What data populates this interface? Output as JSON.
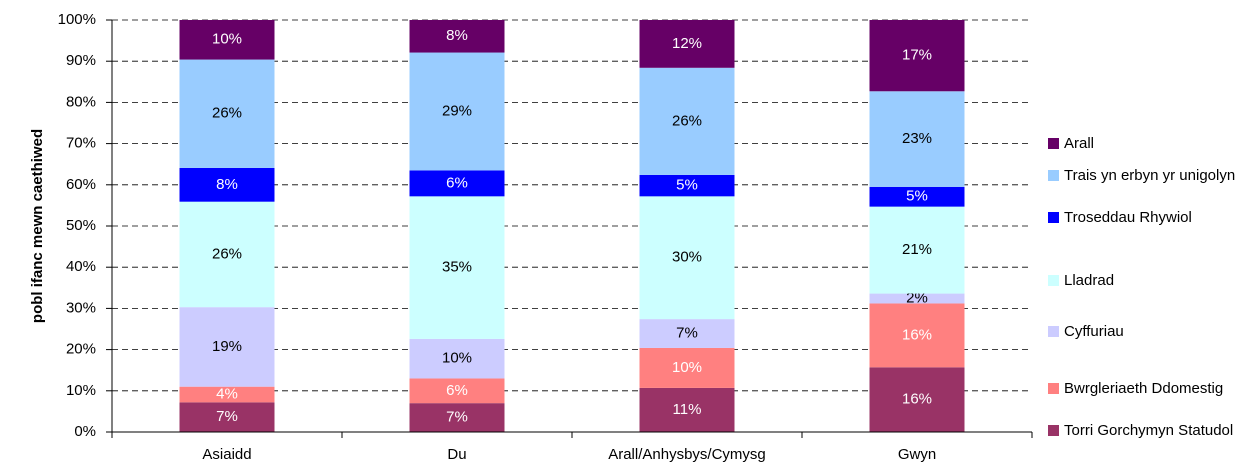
{
  "chart_data": {
    "type": "stacked_bar",
    "y_label": "pobl ifanc mewn caethiwed",
    "categories": [
      "Asiaidd",
      "Du",
      "Arall/Anhysbys/Cymysg",
      "Gwyn"
    ],
    "series": [
      {
        "name": "Torri Gorchymyn Statudol",
        "color": "#993366",
        "values": [
          7.2,
          7.0,
          10.7,
          15.7
        ],
        "value_labels": [
          "7%",
          "7%",
          "11%",
          "16%"
        ]
      },
      {
        "name": "Bwrgleriaeth Ddomestig",
        "color": "#ff8080",
        "values": [
          3.8,
          6.0,
          9.7,
          15.5
        ],
        "value_labels": [
          "4%",
          "6%",
          "10%",
          "16%"
        ]
      },
      {
        "name": "Cyffuriau",
        "color": "#ccccff",
        "values": [
          19.3,
          9.6,
          7.0,
          2.4
        ],
        "value_labels": [
          "19%",
          "10%",
          "7%",
          "2%"
        ]
      },
      {
        "name": "Lladrad",
        "color": "#ccffff",
        "values": [
          25.6,
          34.6,
          29.8,
          21.1
        ],
        "value_labels": [
          "26%",
          "35%",
          "30%",
          "21%"
        ]
      },
      {
        "name": "Troseddau Rhywiol",
        "color": "#0000ff",
        "values": [
          8.2,
          6.3,
          5.2,
          4.8
        ],
        "value_labels": [
          "8%",
          "6%",
          "5%",
          "5%"
        ]
      },
      {
        "name": "Trais yn erbyn yr unigolyn",
        "color": "#99ccff",
        "values": [
          26.3,
          28.6,
          26.0,
          23.2
        ],
        "value_labels": [
          "26%",
          "29%",
          "26%",
          "23%"
        ]
      },
      {
        "name": "Arall",
        "color": "#660066",
        "values": [
          9.6,
          7.9,
          11.6,
          17.3
        ],
        "value_labels": [
          "10%",
          "8%",
          "12%",
          "17%"
        ]
      }
    ],
    "ylim": [
      0,
      100
    ],
    "yticks": [
      {
        "value": 0,
        "label": "0%"
      },
      {
        "value": 10,
        "label": "10%"
      },
      {
        "value": 20,
        "label": "20%"
      },
      {
        "value": 30,
        "label": "30%"
      },
      {
        "value": 40,
        "label": "40%"
      },
      {
        "value": 50,
        "label": "50%"
      },
      {
        "value": 60,
        "label": "60%"
      },
      {
        "value": 70,
        "label": "70%"
      },
      {
        "value": 80,
        "label": "80%"
      },
      {
        "value": 90,
        "label": "90%"
      },
      {
        "value": 100,
        "label": "100%"
      }
    ],
    "grid": true,
    "legend": "right"
  }
}
